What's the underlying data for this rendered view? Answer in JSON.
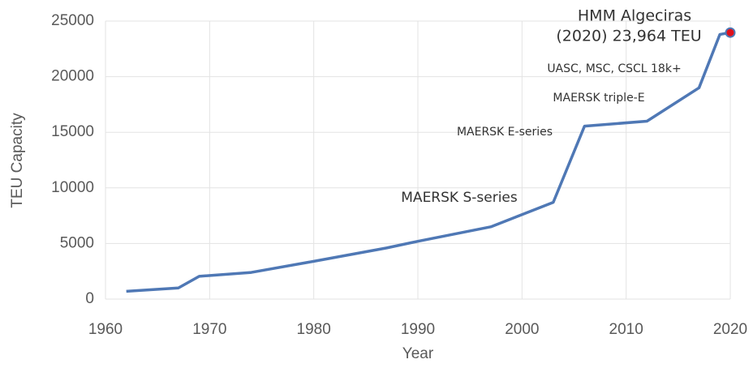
{
  "chart_data": {
    "type": "line",
    "x": [
      1962,
      1967,
      1969,
      1974,
      1980,
      1987,
      1990,
      1997,
      2003,
      2006,
      2012,
      2017,
      2019,
      2020
    ],
    "series": [
      {
        "name": "TEU Capacity",
        "color": "#4f78b5",
        "values": [
          700,
          1000,
          2050,
          2400,
          3400,
          4600,
          5200,
          6500,
          8700,
          15550,
          16000,
          19000,
          23800,
          23964
        ]
      }
    ],
    "marker_color": "#e0101a",
    "xlabel": "Year",
    "ylabel": "TEU Capacity",
    "xlim": [
      1960,
      2020
    ],
    "xticks": [
      1960,
      1970,
      1980,
      1990,
      2000,
      2010,
      2020
    ],
    "ylim": [
      0,
      25000
    ],
    "yticks": [
      0,
      5000,
      10000,
      15000,
      20000,
      25000
    ],
    "grid": true,
    "annotations": [
      "HMM Algeciras",
      "(2020) 23,964 TEU",
      "UASC, MSC, CSCL 18k+",
      "MAERSK triple-E",
      "MAERSK E-series",
      "MAERSK S-series"
    ]
  }
}
